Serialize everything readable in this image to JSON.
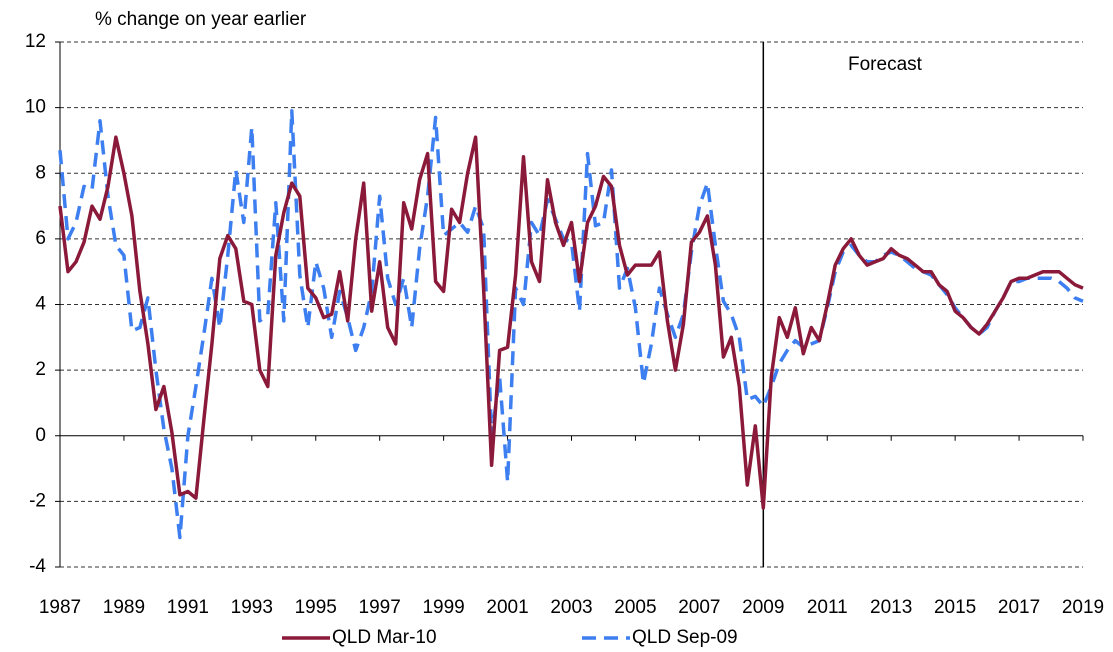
{
  "chart_data": {
    "type": "line",
    "y_label": "% change on year earlier",
    "annotation": "Forecast",
    "forecast_start": 2009,
    "xlim": [
      1987,
      2019
    ],
    "xticks": [
      1987,
      1989,
      1991,
      1993,
      1995,
      1997,
      1999,
      2001,
      2003,
      2005,
      2007,
      2009,
      2011,
      2013,
      2015,
      2017,
      2019
    ],
    "ylim": [
      -4,
      12
    ],
    "yticks": [
      -4,
      -2,
      0,
      2,
      4,
      6,
      8,
      10,
      12
    ],
    "grid": true,
    "legend": "bottom",
    "x": [
      1987,
      1987.25,
      1987.5,
      1987.75,
      1988,
      1988.25,
      1988.5,
      1988.75,
      1989,
      1989.25,
      1989.5,
      1989.75,
      1990,
      1990.25,
      1990.5,
      1990.75,
      1991,
      1991.25,
      1991.5,
      1991.75,
      1992,
      1992.25,
      1992.5,
      1992.75,
      1993,
      1993.25,
      1993.5,
      1993.75,
      1994,
      1994.25,
      1994.5,
      1994.75,
      1995,
      1995.25,
      1995.5,
      1995.75,
      1996,
      1996.25,
      1996.5,
      1996.75,
      1997,
      1997.25,
      1997.5,
      1997.75,
      1998,
      1998.25,
      1998.5,
      1998.75,
      1999,
      1999.25,
      1999.5,
      1999.75,
      2000,
      2000.25,
      2000.5,
      2000.75,
      2001,
      2001.25,
      2001.5,
      2001.75,
      2002,
      2002.25,
      2002.5,
      2002.75,
      2003,
      2003.25,
      2003.5,
      2003.75,
      2004,
      2004.25,
      2004.5,
      2004.75,
      2005,
      2005.25,
      2005.5,
      2005.75,
      2006,
      2006.25,
      2006.5,
      2006.75,
      2007,
      2007.25,
      2007.5,
      2007.75,
      2008,
      2008.25,
      2008.5,
      2008.75,
      2009,
      2009.25,
      2009.5,
      2009.75,
      2010,
      2010.25,
      2010.5,
      2010.75,
      2011,
      2011.25,
      2011.5,
      2011.75,
      2012,
      2012.25,
      2012.5,
      2012.75,
      2013,
      2013.25,
      2013.5,
      2013.75,
      2014,
      2014.25,
      2014.5,
      2014.75,
      2015,
      2015.25,
      2015.5,
      2015.75,
      2016,
      2016.25,
      2016.5,
      2016.75,
      2017,
      2017.25,
      2017.5,
      2017.75,
      2018,
      2018.25,
      2018.5,
      2018.75,
      2019
    ],
    "series": [
      {
        "name": "QLD Mar-10",
        "color": "#8b1a3a",
        "dash": false,
        "values": [
          7.0,
          5.0,
          5.3,
          5.9,
          7.0,
          6.6,
          7.6,
          9.1,
          8.0,
          6.7,
          4.4,
          2.8,
          0.8,
          1.5,
          0.1,
          -1.8,
          -1.7,
          -1.9,
          0.5,
          2.8,
          5.4,
          6.1,
          5.7,
          4.1,
          4.0,
          2.0,
          1.5,
          5.5,
          6.8,
          7.7,
          7.3,
          4.5,
          4.2,
          3.6,
          3.7,
          5.0,
          3.5,
          6.0,
          7.7,
          3.8,
          5.3,
          3.3,
          2.8,
          7.1,
          6.3,
          7.8,
          8.6,
          4.7,
          4.4,
          6.9,
          6.5,
          8.0,
          9.1,
          4.5,
          -0.9,
          2.6,
          2.7,
          4.9,
          8.5,
          5.3,
          4.7,
          7.8,
          6.5,
          5.8,
          6.5,
          4.7,
          6.5,
          7.0,
          7.9,
          7.6,
          5.8,
          4.9,
          5.2,
          5.2,
          5.2,
          5.6,
          3.5,
          2.0,
          3.4,
          5.9,
          6.2,
          6.7,
          5.2,
          2.4,
          3.0,
          1.5,
          -1.5,
          0.3,
          -2.2,
          1.8,
          3.6,
          3.0,
          3.9,
          2.5,
          3.3,
          2.9,
          4.0,
          5.2,
          5.7,
          6.0,
          5.5,
          5.2,
          5.3,
          5.4,
          5.7,
          5.5,
          5.4,
          5.2,
          5.0,
          5.0,
          4.6,
          4.4,
          3.8,
          3.6,
          3.3,
          3.1,
          3.4,
          3.8,
          4.2,
          4.7,
          4.8,
          4.8,
          4.9,
          5.0,
          5.0,
          5.0,
          4.8,
          4.6,
          4.5
        ]
      },
      {
        "name": "QLD Sep-09",
        "color": "#3d7ff0",
        "dash": true,
        "values": [
          8.7,
          6.0,
          6.5,
          7.6,
          7.5,
          9.6,
          7.3,
          5.8,
          5.5,
          3.2,
          3.3,
          4.2,
          2.0,
          0.2,
          -1.0,
          -3.1,
          0.0,
          1.5,
          3.1,
          4.8,
          3.3,
          5.5,
          8.1,
          6.5,
          9.4,
          3.5,
          3.7,
          7.1,
          3.5,
          9.9,
          4.9,
          3.3,
          5.3,
          4.5,
          3.0,
          4.4,
          3.6,
          2.6,
          3.3,
          4.4,
          7.3,
          4.8,
          4.0,
          4.8,
          3.3,
          5.7,
          7.3,
          9.7,
          6.1,
          6.3,
          6.5,
          6.2,
          7.0,
          6.3,
          0.0,
          1.8,
          -1.4,
          4.5,
          4.0,
          6.5,
          6.1,
          7.2,
          6.6,
          6.0,
          5.9,
          3.8,
          8.6,
          6.4,
          6.5,
          8.1,
          4.5,
          5.1,
          3.9,
          1.6,
          2.8,
          4.5,
          3.7,
          3.0,
          3.7,
          5.6,
          7.0,
          7.7,
          5.8,
          4.1,
          3.7,
          3.0,
          1.1,
          1.2,
          0.9,
          1.5,
          2.2,
          2.6,
          2.9,
          2.7,
          2.8,
          2.9,
          3.9,
          5.0,
          5.6,
          5.8,
          5.5,
          5.3,
          5.3,
          5.5,
          5.6,
          5.5,
          5.3,
          5.1,
          5.0,
          4.9,
          4.6,
          4.3,
          3.9,
          3.6,
          3.3,
          3.1,
          3.3,
          3.8,
          4.2,
          4.7,
          4.7,
          4.8,
          4.8,
          4.8,
          4.8,
          4.7,
          4.5,
          4.2,
          4.1
        ]
      }
    ]
  }
}
